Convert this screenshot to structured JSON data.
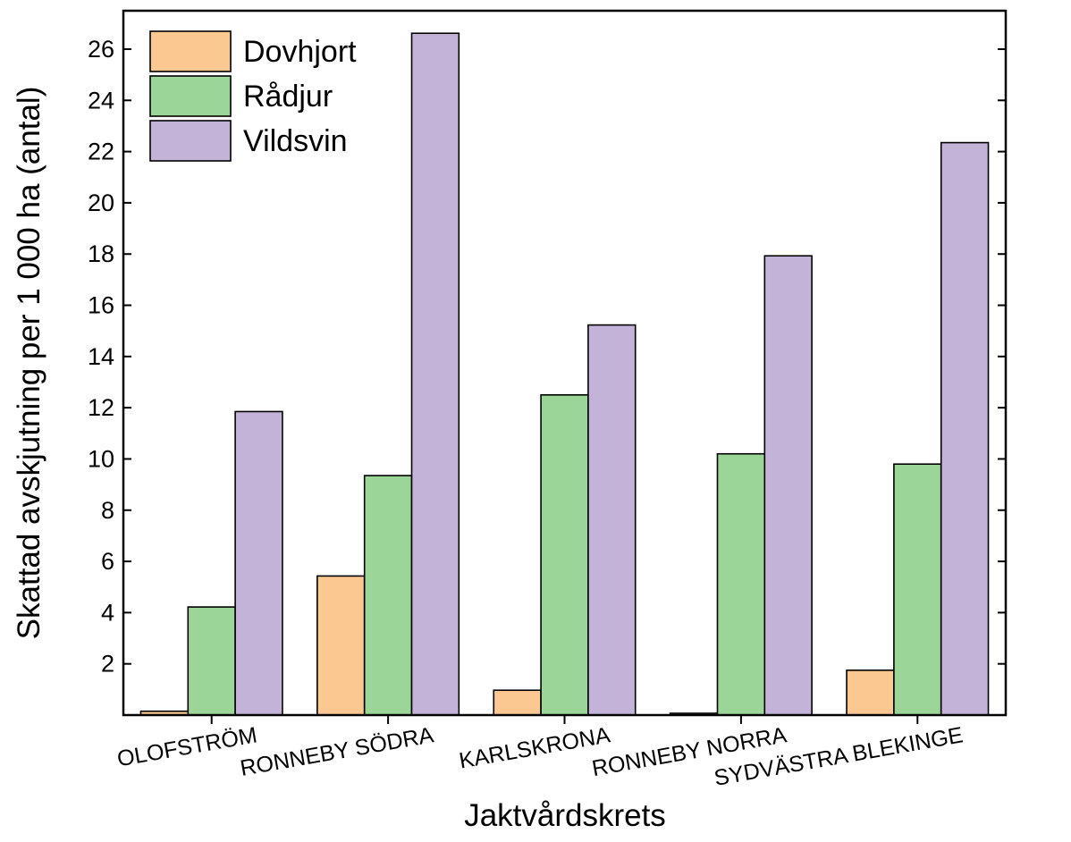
{
  "chart_data": {
    "type": "bar",
    "title": "",
    "xlabel": "Jaktvårdskrets",
    "ylabel": "Skattad avskjutning per 1 000 ha (antal)",
    "ylim": [
      0,
      27.5
    ],
    "yticks": [
      2,
      4,
      6,
      8,
      10,
      12,
      14,
      16,
      18,
      20,
      22,
      24,
      26
    ],
    "grid": false,
    "legend_position": "top-left",
    "categories": [
      "OLOFSTRÖM",
      "RONNEBY SÖDRA",
      "KARLSKRONA",
      "RONNEBY NORRA",
      "SYDVÄSTRA BLEKINGE"
    ],
    "series": [
      {
        "name": "Dovhjort",
        "color": "#fbc892",
        "values": [
          0.15,
          5.43,
          0.97,
          0.07,
          1.75
        ]
      },
      {
        "name": "Rådjur",
        "color": "#9bd698",
        "values": [
          4.22,
          9.35,
          12.5,
          10.2,
          9.8
        ]
      },
      {
        "name": "Vildsvin",
        "color": "#c3b3d8",
        "values": [
          11.85,
          26.62,
          15.23,
          17.93,
          22.35
        ]
      }
    ]
  }
}
